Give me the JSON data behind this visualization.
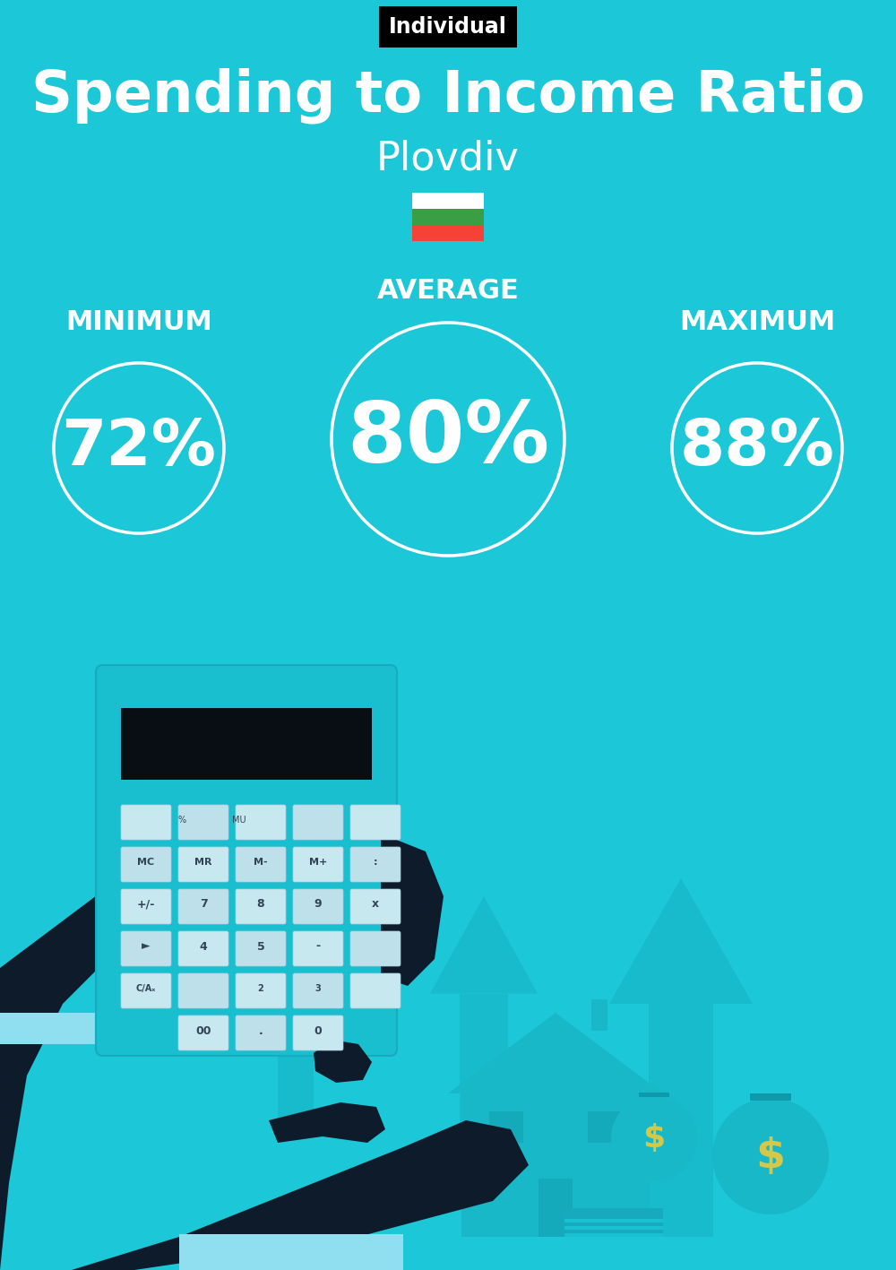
{
  "bg_color": "#1CC8D7",
  "title": "Spending to Income Ratio",
  "subtitle": "Plovdiv",
  "tag_text": "Individual",
  "tag_bg": "#000000",
  "tag_text_color": "#ffffff",
  "label_min": "MINIMUM",
  "label_avg": "AVERAGE",
  "label_max": "MAXIMUM",
  "val_min": "72%",
  "val_avg": "80%",
  "val_max": "88%",
  "circle_color": "#ffffff",
  "text_color": "#ffffff",
  "title_fontsize": 46,
  "subtitle_fontsize": 32,
  "label_fontsize": 22,
  "val_fontsize_small": 52,
  "val_fontsize_large": 68,
  "flag_colors": [
    "#ffffff",
    "#3a9e44",
    "#f44336"
  ],
  "arrow_color": "#17BBCB",
  "dark_color": "#0D1B2A",
  "calc_color": "#1ABFCF",
  "house_color": "#18B8C8",
  "bag_color": "#18B8C8",
  "cuff_color": "#90DFF0"
}
